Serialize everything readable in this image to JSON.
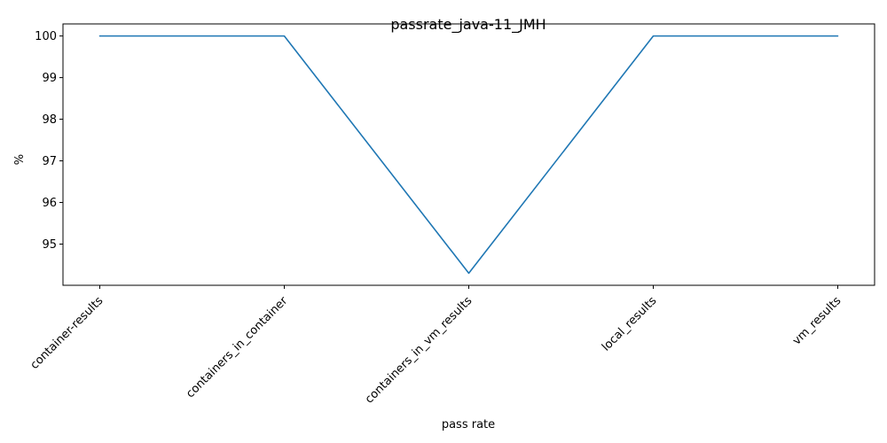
{
  "chart_data": {
    "type": "line",
    "title": "passrate_java-11_JMH",
    "xlabel": "pass rate",
    "ylabel": "%",
    "categories": [
      "container-results",
      "containers_in_container",
      "containers_in_vm_results",
      "local_results",
      "vm_results"
    ],
    "series": [
      {
        "values": [
          100,
          100,
          94.3,
          100,
          100
        ],
        "color": "#1f77b4"
      }
    ],
    "ylim": [
      94.01,
      100.29
    ],
    "yticks": [
      95,
      96,
      97,
      98,
      99,
      100
    ],
    "grid": false,
    "legend": "none"
  }
}
